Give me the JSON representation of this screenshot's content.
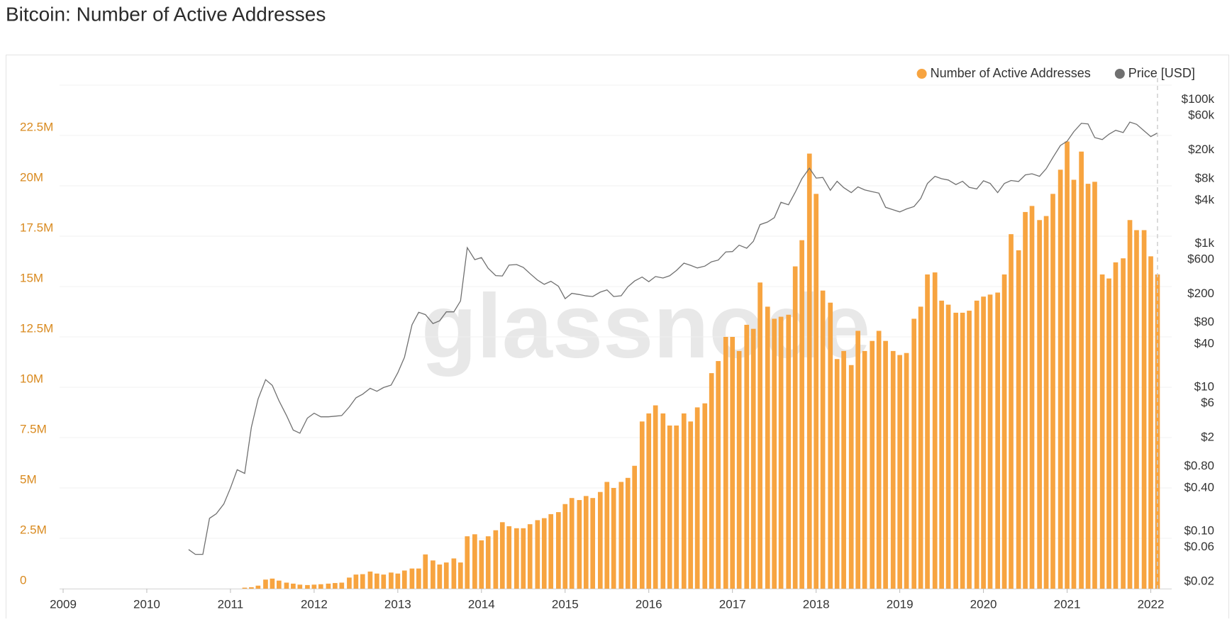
{
  "chart_data": {
    "type": "bar",
    "title": "Bitcoin: Number of Active Addresses",
    "watermark": "glassnode",
    "legend_position": "top-right",
    "grid": true,
    "xlim": [
      2009,
      2022.25
    ],
    "xticks": [
      2009,
      2010,
      2011,
      2012,
      2013,
      2014,
      2015,
      2016,
      2017,
      2018,
      2019,
      2020,
      2021,
      2022
    ],
    "ylim": [
      0,
      25000000
    ],
    "yticks": [
      0,
      {
        "value": 2500000,
        "label": "2.5M"
      },
      {
        "value": 5000000,
        "label": "5M"
      },
      {
        "value": 7500000,
        "label": "7.5M"
      },
      {
        "value": 10000000,
        "label": "10M"
      },
      {
        "value": 12500000,
        "label": "12.5M"
      },
      {
        "value": 15000000,
        "label": "15M"
      },
      {
        "value": 17500000,
        "label": "17.5M"
      },
      {
        "value": 20000000,
        "label": "20M"
      },
      {
        "value": 22500000,
        "label": "22.5M"
      }
    ],
    "y2lim": [
      0.02,
      200000
    ],
    "y2scale": "log",
    "y2ticks": [
      {
        "value": 100000,
        "label": "$100k"
      },
      {
        "value": 60000,
        "label": "$60k"
      },
      {
        "value": 20000,
        "label": "$20k"
      },
      {
        "value": 8000,
        "label": "$8k"
      },
      {
        "value": 4000,
        "label": "$4k"
      },
      {
        "value": 1000,
        "label": "$1k"
      },
      {
        "value": 600,
        "label": "$600"
      },
      {
        "value": 200,
        "label": "$200"
      },
      {
        "value": 80,
        "label": "$80"
      },
      {
        "value": 40,
        "label": "$40"
      },
      {
        "value": 10,
        "label": "$10"
      },
      {
        "value": 6,
        "label": "$6"
      },
      {
        "value": 2,
        "label": "$2"
      },
      {
        "value": 0.8,
        "label": "$0.80"
      },
      {
        "value": 0.4,
        "label": "$0.40"
      },
      {
        "value": 0.1,
        "label": "$0.10"
      },
      {
        "value": 0.06,
        "label": "$0.06"
      },
      {
        "value": 0.02,
        "label": "$0.02"
      }
    ],
    "x": [
      2010.5,
      2010.58,
      2010.67,
      2010.75,
      2010.83,
      2010.92,
      2011,
      2011.08,
      2011.17,
      2011.25,
      2011.33,
      2011.42,
      2011.5,
      2011.58,
      2011.67,
      2011.75,
      2011.83,
      2011.92,
      2012,
      2012.08,
      2012.17,
      2012.25,
      2012.33,
      2012.42,
      2012.5,
      2012.58,
      2012.67,
      2012.75,
      2012.83,
      2012.92,
      2013,
      2013.08,
      2013.17,
      2013.25,
      2013.33,
      2013.42,
      2013.5,
      2013.58,
      2013.67,
      2013.75,
      2013.83,
      2013.92,
      2014,
      2014.08,
      2014.17,
      2014.25,
      2014.33,
      2014.42,
      2014.5,
      2014.58,
      2014.67,
      2014.75,
      2014.83,
      2014.92,
      2015,
      2015.08,
      2015.17,
      2015.25,
      2015.33,
      2015.42,
      2015.5,
      2015.58,
      2015.67,
      2015.75,
      2015.83,
      2015.92,
      2016,
      2016.08,
      2016.17,
      2016.25,
      2016.33,
      2016.42,
      2016.5,
      2016.58,
      2016.67,
      2016.75,
      2016.83,
      2016.92,
      2017,
      2017.08,
      2017.17,
      2017.25,
      2017.33,
      2017.42,
      2017.5,
      2017.58,
      2017.67,
      2017.75,
      2017.83,
      2017.92,
      2018,
      2018.08,
      2018.17,
      2018.25,
      2018.33,
      2018.42,
      2018.5,
      2018.58,
      2018.67,
      2018.75,
      2018.83,
      2018.92,
      2019,
      2019.08,
      2019.17,
      2019.25,
      2019.33,
      2019.42,
      2019.5,
      2019.58,
      2019.67,
      2019.75,
      2019.83,
      2019.92,
      2020,
      2020.08,
      2020.17,
      2020.25,
      2020.33,
      2020.42,
      2020.5,
      2020.58,
      2020.67,
      2020.75,
      2020.83,
      2020.92,
      2021,
      2021.08,
      2021.17,
      2021.25,
      2021.33,
      2021.42,
      2021.5,
      2021.58,
      2021.67,
      2021.75,
      2021.83,
      2021.92,
      2022,
      2022.08
    ],
    "series": [
      {
        "name": "Number of Active Addresses",
        "type": "bar",
        "color": "#f7a440",
        "values": [
          null,
          null,
          null,
          null,
          null,
          null,
          null,
          null,
          50000,
          70000,
          150000,
          450000,
          500000,
          400000,
          300000,
          250000,
          200000,
          180000,
          200000,
          220000,
          250000,
          280000,
          300000,
          550000,
          700000,
          720000,
          850000,
          750000,
          700000,
          800000,
          750000,
          900000,
          1000000,
          1000000,
          1700000,
          1400000,
          1200000,
          1300000,
          1500000,
          1300000,
          2600000,
          2700000,
          2400000,
          2600000,
          2900000,
          3300000,
          3100000,
          3000000,
          3000000,
          3200000,
          3400000,
          3500000,
          3700000,
          3800000,
          4200000,
          4500000,
          4400000,
          4600000,
          4500000,
          4800000,
          5300000,
          5000000,
          5300000,
          5500000,
          6100000,
          8300000,
          8700000,
          9100000,
          8700000,
          8100000,
          8100000,
          8700000,
          8300000,
          9000000,
          9200000,
          10700000,
          11300000,
          12500000,
          12500000,
          11800000,
          13100000,
          12900000,
          15200000,
          14000000,
          13400000,
          13500000,
          13600000,
          16000000,
          17300000,
          21600000,
          19600000,
          14800000,
          14200000,
          11400000,
          11800000,
          11100000,
          12800000,
          11800000,
          12300000,
          12800000,
          12300000,
          11800000,
          11600000,
          11700000,
          13400000,
          14000000,
          15600000,
          15700000,
          14300000,
          14100000,
          13700000,
          13700000,
          13800000,
          14300000,
          14500000,
          14600000,
          14700000,
          15600000,
          17600000,
          16800000,
          18700000,
          19000000,
          18300000,
          18500000,
          19600000,
          20800000,
          22200000,
          20300000,
          21700000,
          20100000,
          20200000,
          15600000,
          15400000,
          16200000,
          16400000,
          18300000,
          17800000,
          17800000,
          16500000,
          15600000
        ]
      },
      {
        "name": "Price [USD]",
        "type": "line",
        "axis": "y2",
        "color": "#707070",
        "values": [
          0.07,
          0.06,
          0.06,
          0.19,
          0.22,
          0.3,
          0.5,
          0.9,
          0.8,
          3.5,
          8.7,
          16.1,
          13.4,
          8.2,
          5.1,
          3.2,
          2.9,
          4.7,
          5.5,
          4.9,
          4.9,
          5,
          5.1,
          6.7,
          9,
          10.1,
          12.2,
          11.1,
          12.5,
          13.5,
          20,
          33,
          93,
          139,
          129,
          97,
          106,
          141,
          141,
          200,
          1100,
          750,
          800,
          570,
          450,
          445,
          630,
          640,
          585,
          480,
          390,
          340,
          375,
          320,
          215,
          255,
          245,
          235,
          230,
          265,
          285,
          230,
          236,
          314,
          378,
          430,
          370,
          437,
          416,
          448,
          530,
          670,
          625,
          575,
          610,
          700,
          740,
          960,
          970,
          1190,
          1080,
          1350,
          2300,
          2500,
          2870,
          4700,
          4340,
          6470,
          10000,
          14000,
          10200,
          10400,
          6900,
          9200,
          7500,
          6400,
          7700,
          7000,
          6600,
          6300,
          4000,
          3700,
          3450,
          3800,
          4100,
          5300,
          8600,
          10800,
          10000,
          9600,
          8300,
          9200,
          7600,
          7200,
          9350,
          8600,
          6400,
          8600,
          9450,
          9140,
          11300,
          11700,
          10800,
          13800,
          19700,
          29000,
          33100,
          45100,
          58800,
          57800,
          37300,
          35000,
          41500,
          47100,
          43800,
          61300,
          57000,
          46300,
          38500,
          43200
        ]
      }
    ]
  }
}
